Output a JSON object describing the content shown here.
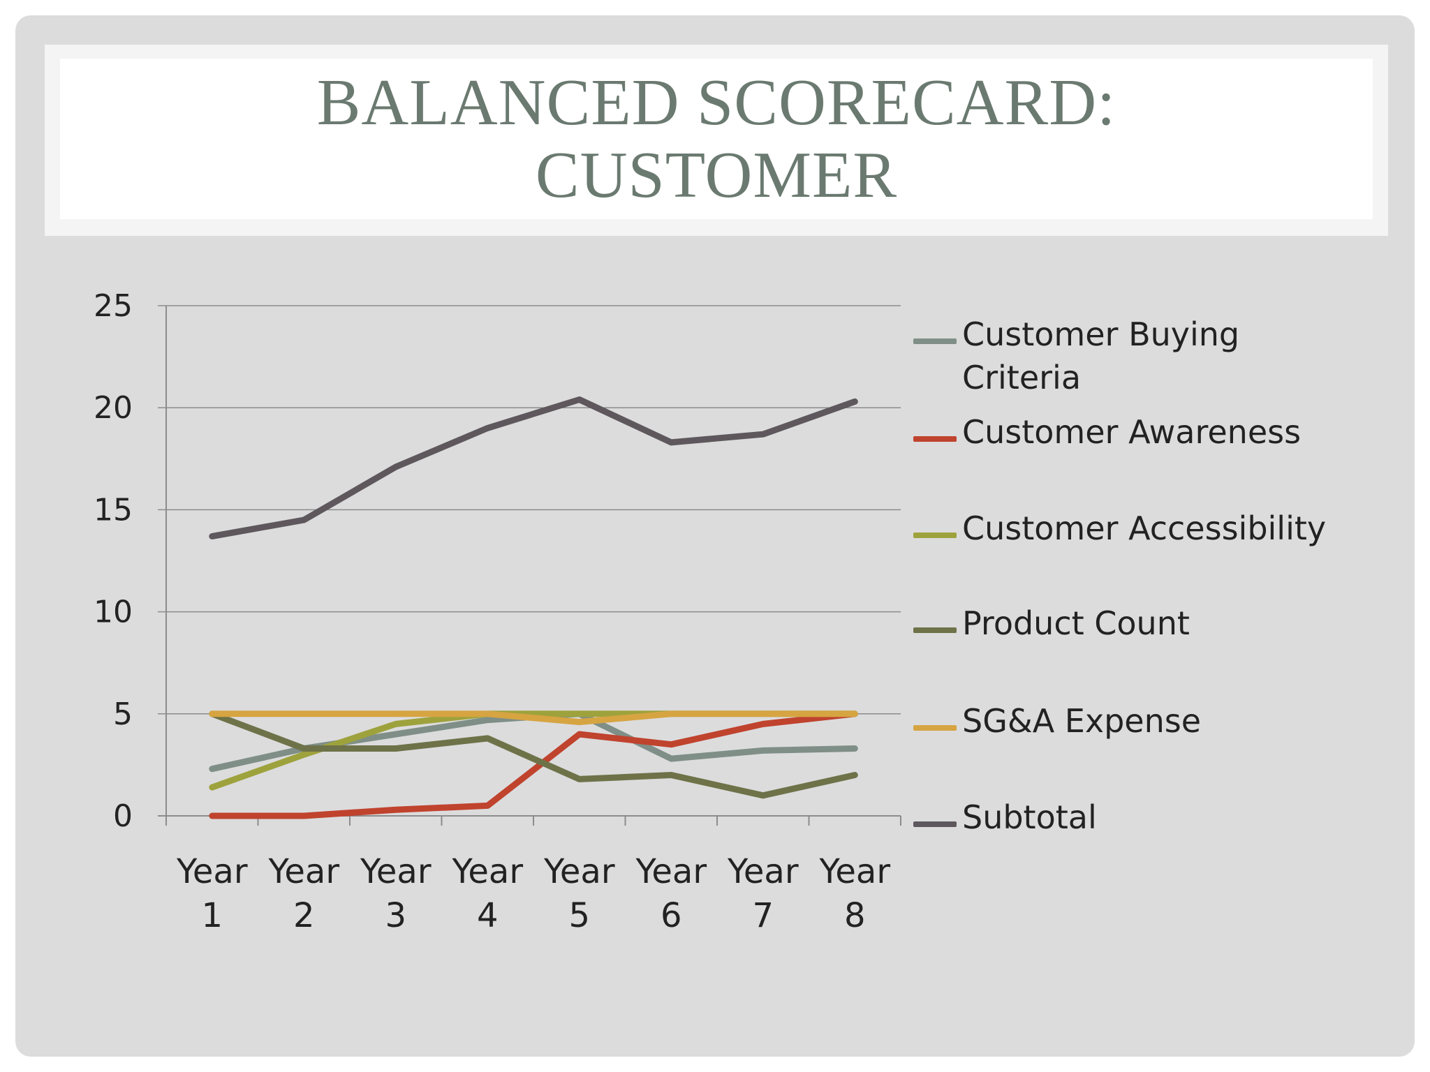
{
  "slide": {
    "title_line1": "BALANCED SCORECARD:",
    "title_line2": "CUSTOMER"
  },
  "chart_data": {
    "type": "line",
    "title": "BALANCED SCORECARD: CUSTOMER",
    "xlabel": "",
    "ylabel": "",
    "ylim": [
      0,
      25
    ],
    "yticks": [
      0,
      5,
      10,
      15,
      20,
      25
    ],
    "grid": true,
    "legend_position": "right",
    "categories": [
      {
        "line1": "Year",
        "line2": "1"
      },
      {
        "line1": "Year",
        "line2": "2"
      },
      {
        "line1": "Year",
        "line2": "3"
      },
      {
        "line1": "Year",
        "line2": "4"
      },
      {
        "line1": "Year",
        "line2": "5"
      },
      {
        "line1": "Year",
        "line2": "6"
      },
      {
        "line1": "Year",
        "line2": "7"
      },
      {
        "line1": "Year",
        "line2": "8"
      }
    ],
    "series": [
      {
        "name": "Customer Buying Criteria",
        "color": "#7f8f87",
        "values": [
          2.3,
          3.3,
          4.0,
          4.7,
          5.0,
          2.8,
          3.2,
          3.3
        ]
      },
      {
        "name": "Customer Awareness",
        "color": "#c0432e",
        "values": [
          0.0,
          0.0,
          0.3,
          0.5,
          4.0,
          3.5,
          4.5,
          5.0
        ]
      },
      {
        "name": "Customer Accessibility",
        "color": "#9ea23c",
        "values": [
          1.4,
          3.0,
          4.5,
          5.0,
          5.0,
          5.0,
          5.0,
          5.0
        ]
      },
      {
        "name": "Product Count",
        "color": "#6e7248",
        "values": [
          5.0,
          3.3,
          3.3,
          3.8,
          1.8,
          2.0,
          1.0,
          2.0
        ]
      },
      {
        "name": "SG&A Expense",
        "color": "#d6a441",
        "values": [
          5.0,
          5.0,
          5.0,
          5.0,
          4.6,
          5.0,
          5.0,
          5.0
        ]
      },
      {
        "name": "Subtotal",
        "color": "#5e585c",
        "values": [
          13.7,
          14.5,
          17.1,
          19.0,
          20.4,
          18.3,
          18.7,
          20.3
        ]
      }
    ]
  }
}
